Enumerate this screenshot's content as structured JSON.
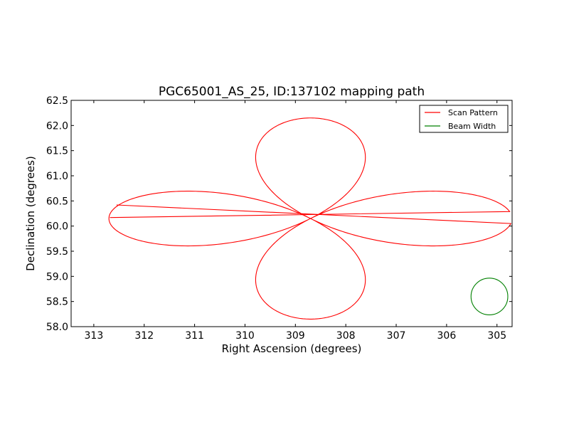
{
  "chart_data": {
    "type": "line",
    "title": "PGC65001_AS_25, ID:137102 mapping path",
    "xlabel": "Right Ascension (degrees)",
    "ylabel": "Declination (degrees)",
    "xlim": [
      313.45,
      304.7
    ],
    "ylim": [
      58.0,
      62.5
    ],
    "x_inverted": true,
    "grid": false,
    "legend_position": "top-right",
    "xticks": [
      313,
      312,
      311,
      310,
      309,
      308,
      307,
      306,
      305
    ],
    "xtick_labels": [
      "313",
      "312",
      "311",
      "310",
      "309",
      "308",
      "307",
      "306",
      "305"
    ],
    "yticks": [
      58.0,
      58.5,
      59.0,
      59.5,
      60.0,
      60.5,
      61.0,
      61.5,
      62.0,
      62.5
    ],
    "ytick_labels": [
      "58.0",
      "58.5",
      "59.0",
      "59.5",
      "60.0",
      "60.5",
      "61.0",
      "61.5",
      "62.0",
      "62.5"
    ],
    "series": [
      {
        "name": "Scan Pattern",
        "color": "#ff0000",
        "kind": "rose-scan",
        "center": [
          308.7,
          60.15
        ],
        "ra_amplitude": 4.0,
        "dec_amplitude": 2.0,
        "start_point": [
          312.55,
          60.42
        ],
        "end_point": [
          312.68,
          60.17
        ]
      },
      {
        "name": "Beam Width",
        "color": "#008000",
        "kind": "circle",
        "center": [
          305.15,
          58.6
        ],
        "diameter_deg": 0.73
      }
    ]
  }
}
